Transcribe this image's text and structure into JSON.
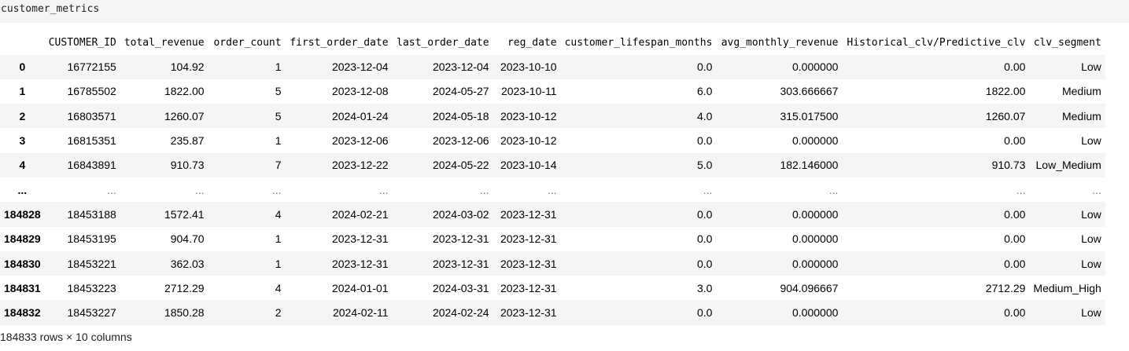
{
  "cell": {
    "code": "customer_metrics"
  },
  "table": {
    "columns": [
      "CUSTOMER_ID",
      "total_revenue",
      "order_count",
      "first_order_date",
      "last_order_date",
      "reg_date",
      "customer_lifespan_months",
      "avg_monthly_revenue",
      "Historical_clv/Predictive_clv",
      "clv_segment"
    ],
    "rows": [
      {
        "index": "0",
        "cells": [
          "16772155",
          "104.92",
          "1",
          "2023-12-04",
          "2023-12-04",
          "2023-10-10",
          "0.0",
          "0.000000",
          "0.00",
          "Low"
        ]
      },
      {
        "index": "1",
        "cells": [
          "16785502",
          "1822.00",
          "5",
          "2023-12-08",
          "2024-05-27",
          "2023-10-11",
          "6.0",
          "303.666667",
          "1822.00",
          "Medium"
        ]
      },
      {
        "index": "2",
        "cells": [
          "16803571",
          "1260.07",
          "5",
          "2024-01-24",
          "2024-05-18",
          "2023-10-12",
          "4.0",
          "315.017500",
          "1260.07",
          "Medium"
        ]
      },
      {
        "index": "3",
        "cells": [
          "16815351",
          "235.87",
          "1",
          "2023-12-06",
          "2023-12-06",
          "2023-10-12",
          "0.0",
          "0.000000",
          "0.00",
          "Low"
        ]
      },
      {
        "index": "4",
        "cells": [
          "16843891",
          "910.73",
          "7",
          "2023-12-22",
          "2024-05-22",
          "2023-10-14",
          "5.0",
          "182.146000",
          "910.73",
          "Low_Medium"
        ]
      },
      {
        "index": "...",
        "cells": [
          "...",
          "...",
          "...",
          "...",
          "...",
          "...",
          "...",
          "...",
          "...",
          "..."
        ]
      },
      {
        "index": "184828",
        "cells": [
          "18453188",
          "1572.41",
          "4",
          "2024-02-21",
          "2024-03-02",
          "2023-12-31",
          "0.0",
          "0.000000",
          "0.00",
          "Low"
        ]
      },
      {
        "index": "184829",
        "cells": [
          "18453195",
          "904.70",
          "1",
          "2023-12-31",
          "2023-12-31",
          "2023-12-31",
          "0.0",
          "0.000000",
          "0.00",
          "Low"
        ]
      },
      {
        "index": "184830",
        "cells": [
          "18453221",
          "362.03",
          "1",
          "2023-12-31",
          "2023-12-31",
          "2023-12-31",
          "0.0",
          "0.000000",
          "0.00",
          "Low"
        ]
      },
      {
        "index": "184831",
        "cells": [
          "18453223",
          "2712.29",
          "4",
          "2024-01-01",
          "2024-03-31",
          "2023-12-31",
          "3.0",
          "904.096667",
          "2712.29",
          "Medium_High"
        ]
      },
      {
        "index": "184832",
        "cells": [
          "18453227",
          "1850.28",
          "2",
          "2024-02-11",
          "2024-02-24",
          "2023-12-31",
          "0.0",
          "0.000000",
          "0.00",
          "Low"
        ]
      }
    ]
  },
  "footer": {
    "shape": "184833 rows × 10 columns"
  }
}
